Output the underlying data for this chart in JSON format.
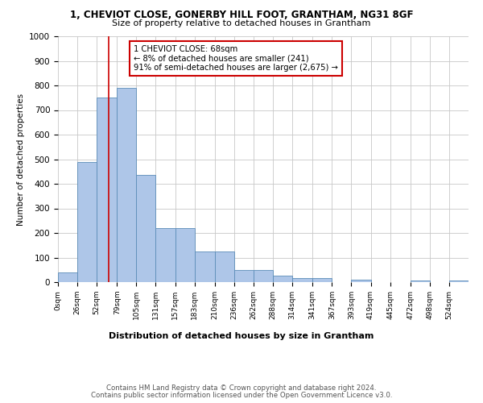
{
  "title": "1, CHEVIOT CLOSE, GONERBY HILL FOOT, GRANTHAM, NG31 8GF",
  "subtitle": "Size of property relative to detached houses in Grantham",
  "xlabel": "Distribution of detached houses by size in Grantham",
  "ylabel": "Number of detached properties",
  "bar_values": [
    40,
    490,
    750,
    790,
    435,
    220,
    220,
    125,
    125,
    50,
    50,
    25,
    15,
    15,
    0,
    10,
    0,
    0,
    7,
    0,
    7
  ],
  "bin_edges": [
    0,
    26,
    52,
    79,
    105,
    131,
    157,
    183,
    210,
    236,
    262,
    288,
    314,
    341,
    367,
    393,
    419,
    445,
    472,
    498,
    524,
    550
  ],
  "tick_labels": [
    "0sqm",
    "26sqm",
    "52sqm",
    "79sqm",
    "105sqm",
    "131sqm",
    "157sqm",
    "183sqm",
    "210sqm",
    "236sqm",
    "262sqm",
    "288sqm",
    "314sqm",
    "341sqm",
    "367sqm",
    "393sqm",
    "419sqm",
    "445sqm",
    "472sqm",
    "498sqm",
    "524sqm"
  ],
  "bar_color": "#aec6e8",
  "bar_edge_color": "#5b8db8",
  "property_line_x": 68,
  "annotation_text": "1 CHEVIOT CLOSE: 68sqm\n← 8% of detached houses are smaller (241)\n91% of semi-detached houses are larger (2,675) →",
  "annotation_box_color": "#ffffff",
  "annotation_border_color": "#cc0000",
  "property_line_color": "#cc0000",
  "ylim": [
    0,
    1000
  ],
  "yticks": [
    0,
    100,
    200,
    300,
    400,
    500,
    600,
    700,
    800,
    900,
    1000
  ],
  "footer1": "Contains HM Land Registry data © Crown copyright and database right 2024.",
  "footer2": "Contains public sector information licensed under the Open Government Licence v3.0.",
  "background_color": "#ffffff",
  "grid_color": "#c8c8c8"
}
